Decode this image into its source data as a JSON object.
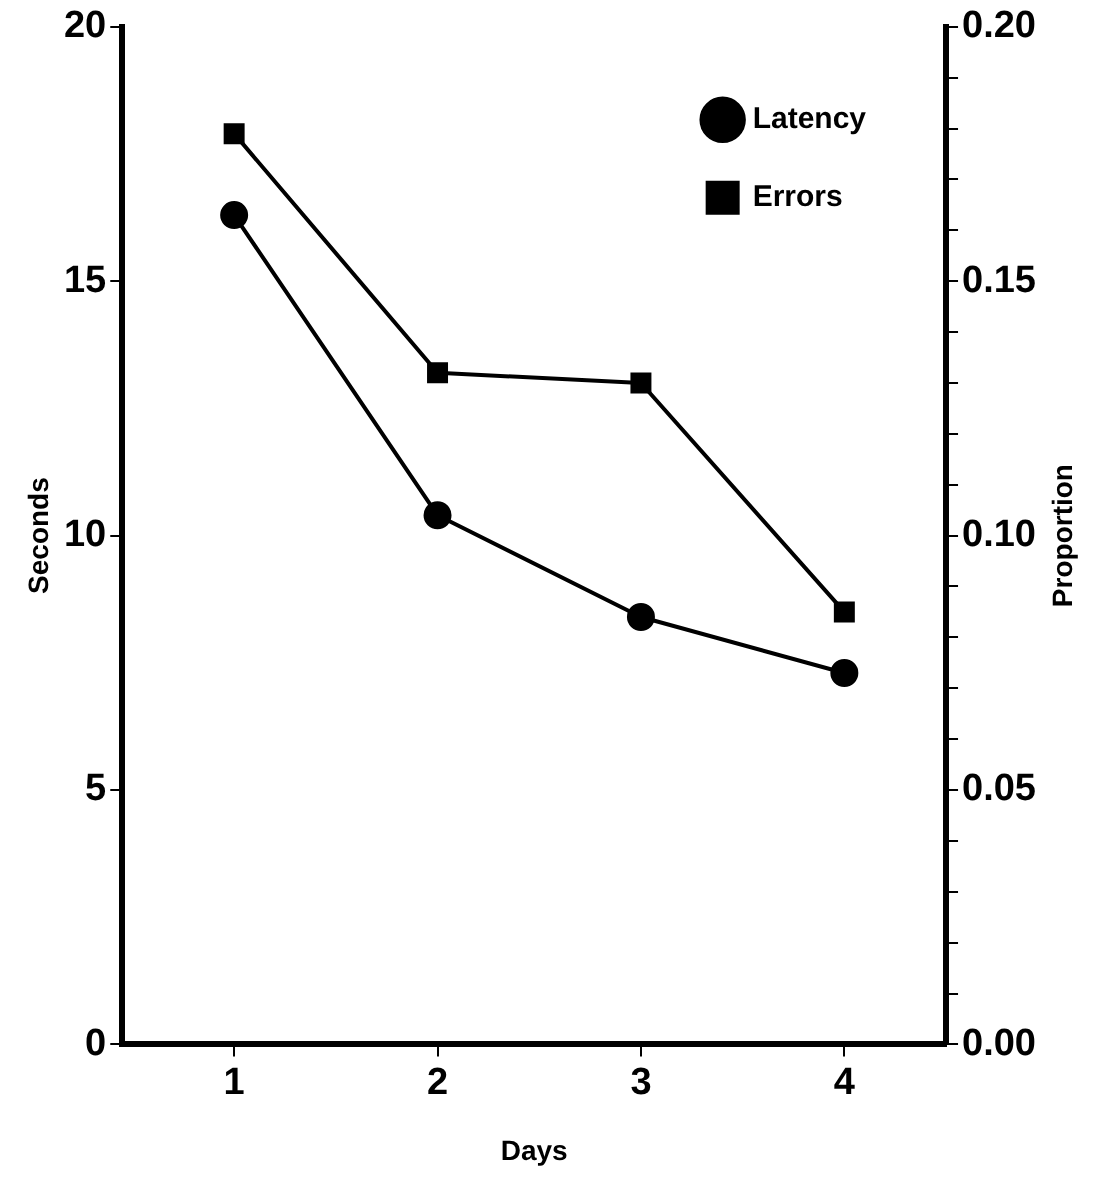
{
  "chart_data": {
    "type": "line",
    "xlabel": "Days",
    "ylabel": "Seconds",
    "y2label": "Proportion",
    "x": [
      1,
      2,
      3,
      4
    ],
    "xlim": [
      0.45,
      4.5
    ],
    "xticks": [
      1,
      2,
      3,
      4
    ],
    "ylim": [
      0,
      20
    ],
    "yticks": [
      0,
      5,
      10,
      15,
      20
    ],
    "y2lim": [
      0,
      0.2
    ],
    "y2ticks": [
      {
        "value": 0,
        "label": "0.00"
      },
      {
        "value": 0.01,
        "label": null
      },
      {
        "value": 0.02,
        "label": null
      },
      {
        "value": 0.03,
        "label": null
      },
      {
        "value": 0.04,
        "label": null
      },
      {
        "value": 0.05,
        "label": "0.05"
      },
      {
        "value": 0.06,
        "label": null
      },
      {
        "value": 0.07,
        "label": null
      },
      {
        "value": 0.08,
        "label": null
      },
      {
        "value": 0.09,
        "label": null
      },
      {
        "value": 0.1,
        "label": "0.10"
      },
      {
        "value": 0.11,
        "label": null
      },
      {
        "value": 0.12,
        "label": null
      },
      {
        "value": 0.13,
        "label": null
      },
      {
        "value": 0.14,
        "label": null
      },
      {
        "value": 0.15,
        "label": "0.15"
      },
      {
        "value": 0.16,
        "label": null
      },
      {
        "value": 0.17,
        "label": null
      },
      {
        "value": 0.18,
        "label": null
      },
      {
        "value": 0.19,
        "label": null
      },
      {
        "value": 0.2,
        "label": "0.20"
      }
    ],
    "series": [
      {
        "name": "Latency",
        "color": "#000000",
        "marker": "circle",
        "values": [
          16.3,
          10.4,
          8.4,
          7.3
        ]
      },
      {
        "name": "Errors",
        "color": "#000000",
        "marker": "square",
        "axis": "y2",
        "values": [
          0.179,
          0.132,
          0.13,
          0.085
        ]
      }
    ],
    "legend": "top right",
    "grid": false,
    "line_style": "solid"
  }
}
